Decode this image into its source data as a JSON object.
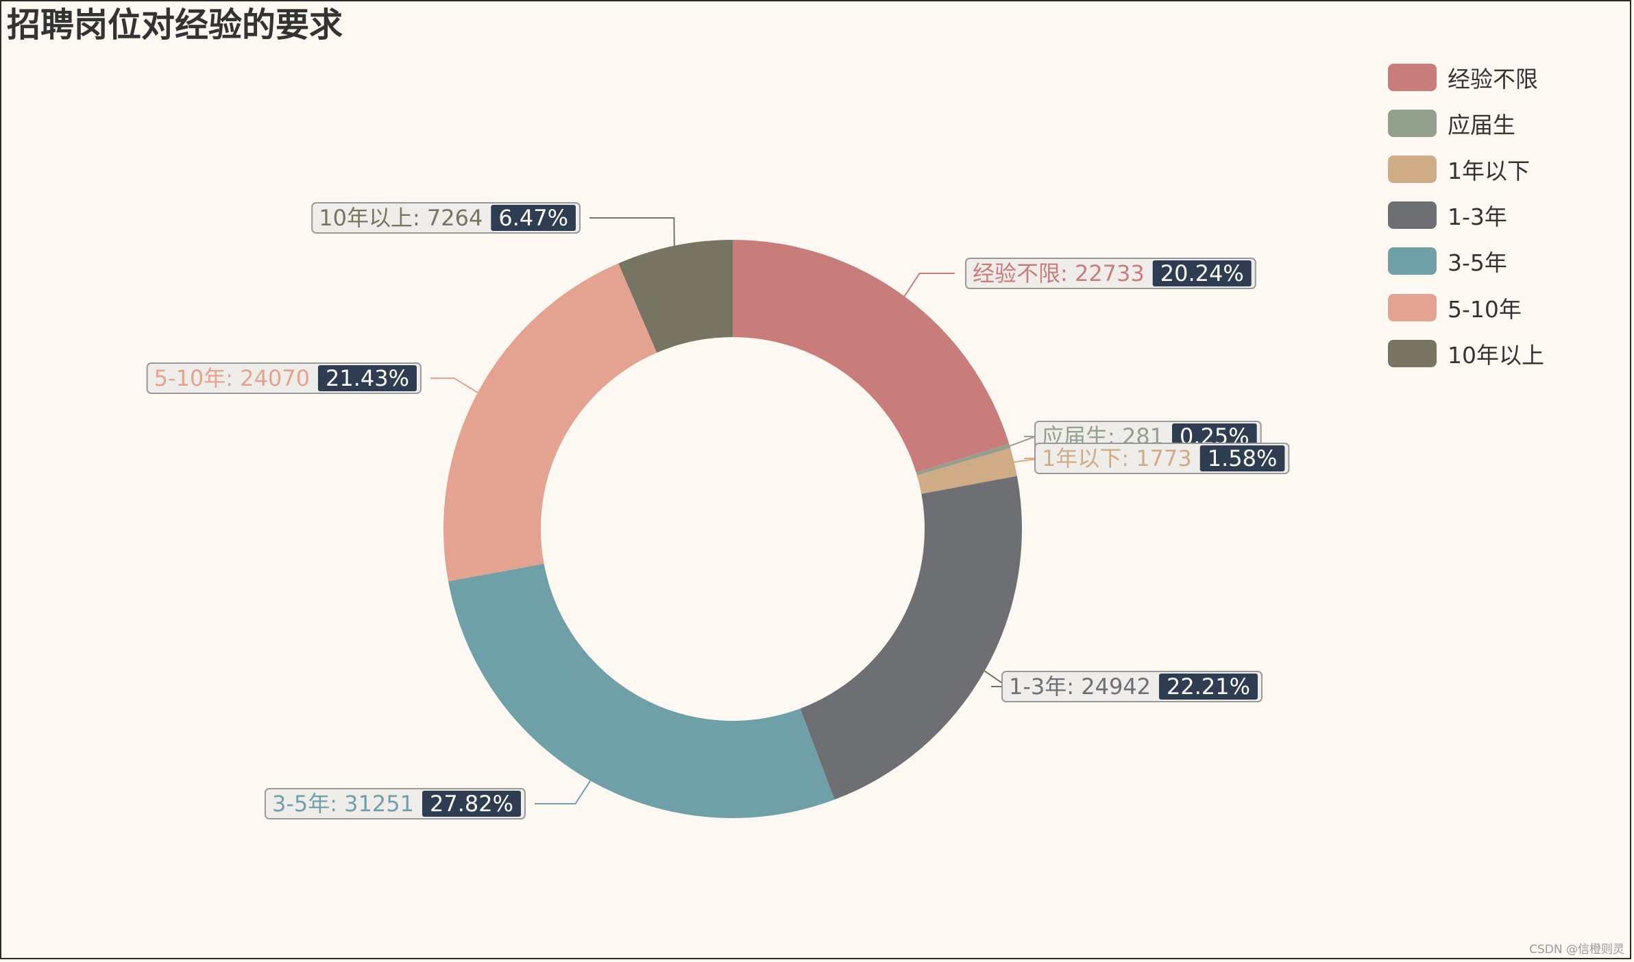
{
  "chart_data": {
    "type": "pie",
    "variant": "donut",
    "title": "招聘岗位对经验的要求",
    "legend_position": "right",
    "slices": [
      {
        "name": "经验不限",
        "value": 22733,
        "percent": "20.24%",
        "color": "#c97d7b"
      },
      {
        "name": "应届生",
        "value": 281,
        "percent": "0.25%",
        "color": "#93a08d"
      },
      {
        "name": "1年以下",
        "value": 1773,
        "percent": "1.58%",
        "color": "#d0ac86"
      },
      {
        "name": "1-3年",
        "value": 24942,
        "percent": "22.21%",
        "color": "#6e6f73"
      },
      {
        "name": "3-5年",
        "value": 31251,
        "percent": "27.82%",
        "color": "#70a0a7"
      },
      {
        "name": "5-10年",
        "value": 24070,
        "percent": "21.43%",
        "color": "#e4a391"
      },
      {
        "name": "10年以上",
        "value": 7264,
        "percent": "6.47%",
        "color": "#787462"
      }
    ]
  },
  "watermark": "CSDN @信橙则灵",
  "colors": {
    "background": "#fdf9f2",
    "percent_badge": "#2e3d52",
    "label_box_bg": "#eeedea",
    "label_box_border": "#999999"
  }
}
